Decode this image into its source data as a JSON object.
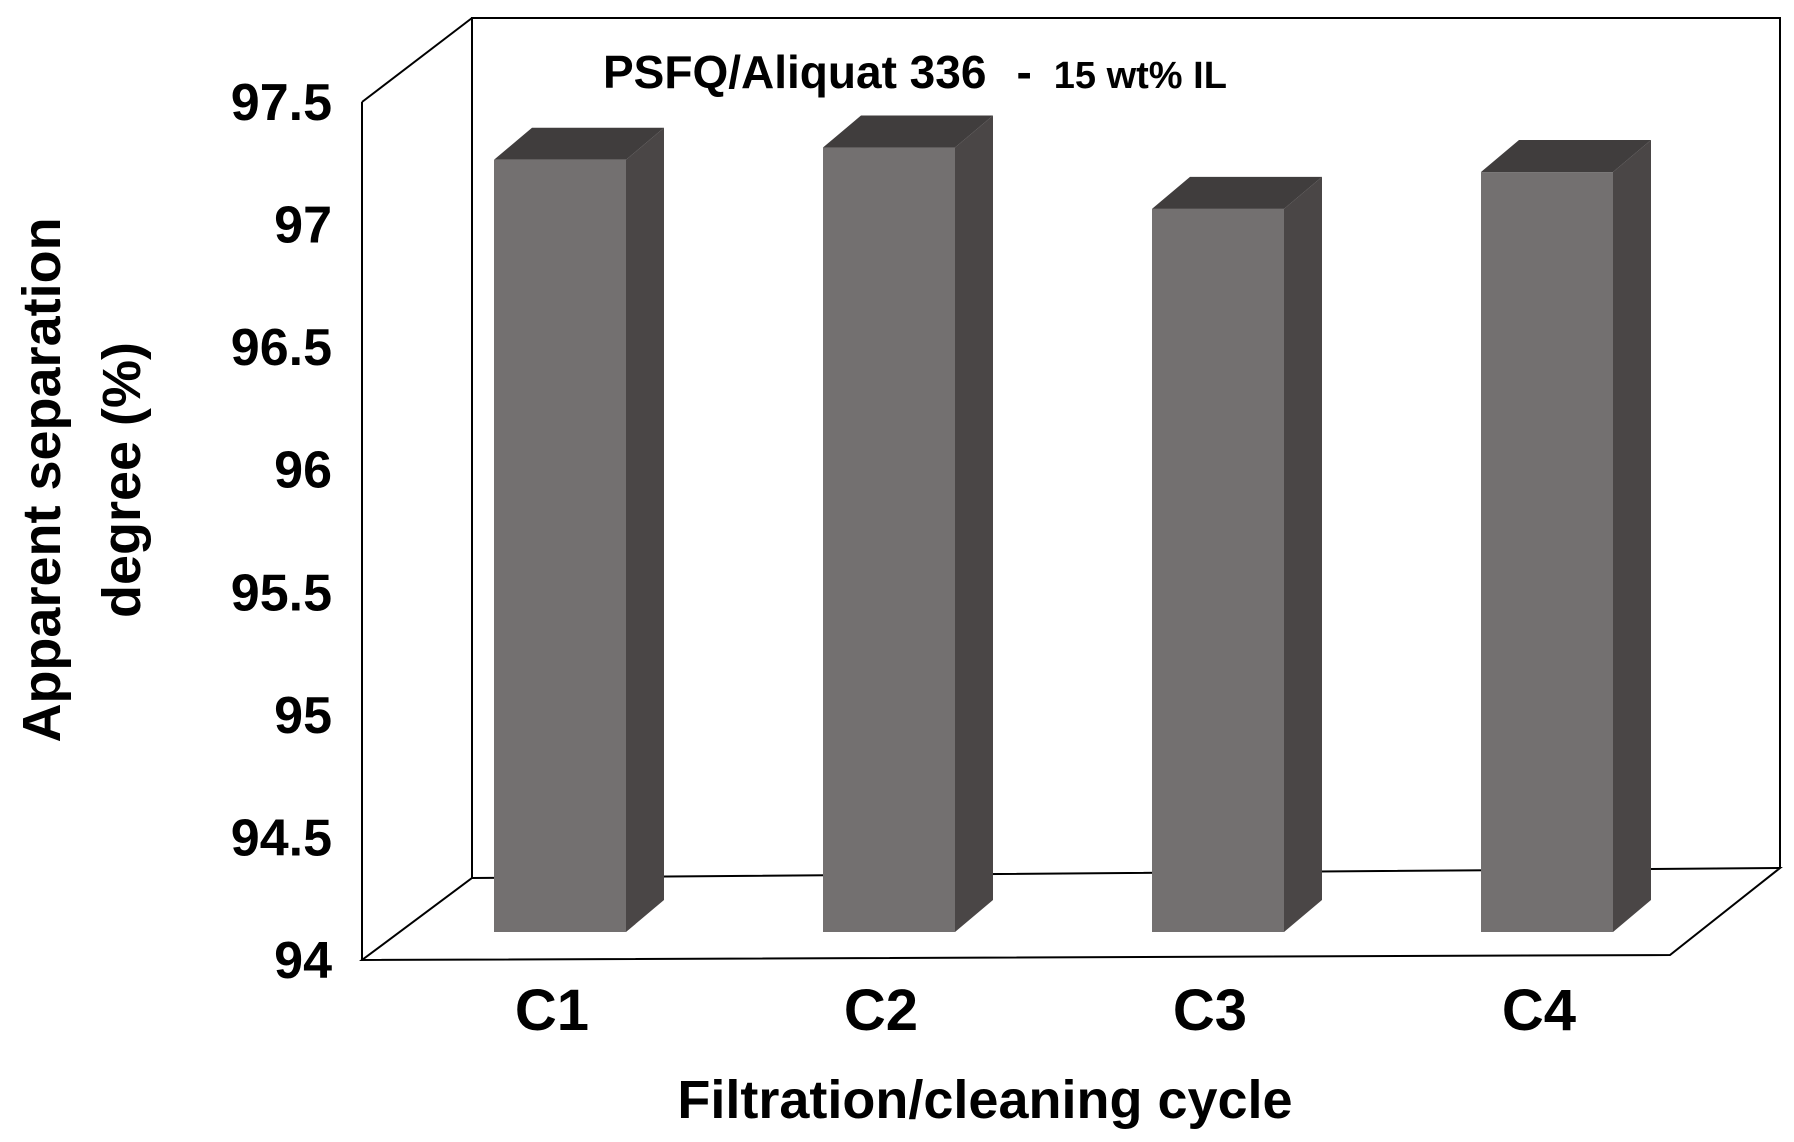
{
  "chart_data": {
    "type": "bar",
    "categories": [
      "C1",
      "C2",
      "C3",
      "C4"
    ],
    "values": [
      97.15,
      97.2,
      96.95,
      97.1
    ],
    "title": "",
    "annotation": {
      "main": "PSFQ/Aliquat 336",
      "separator": "-",
      "sub": "15 wt% IL"
    },
    "xlabel": "Filtration/cleaning cycle",
    "ylabel_lines": [
      "Apparent separation",
      "degree (%)"
    ],
    "ylim": [
      94,
      97.5
    ],
    "yticks": [
      "94",
      "94.5",
      "95",
      "95.5",
      "96",
      "96.5",
      "97",
      "97.5"
    ],
    "grid": false,
    "legend": "none",
    "colors": {
      "bar_front": "#737070",
      "bar_side": "#4a4646",
      "bar_top": "#403d3d",
      "frame": "#000000"
    }
  }
}
